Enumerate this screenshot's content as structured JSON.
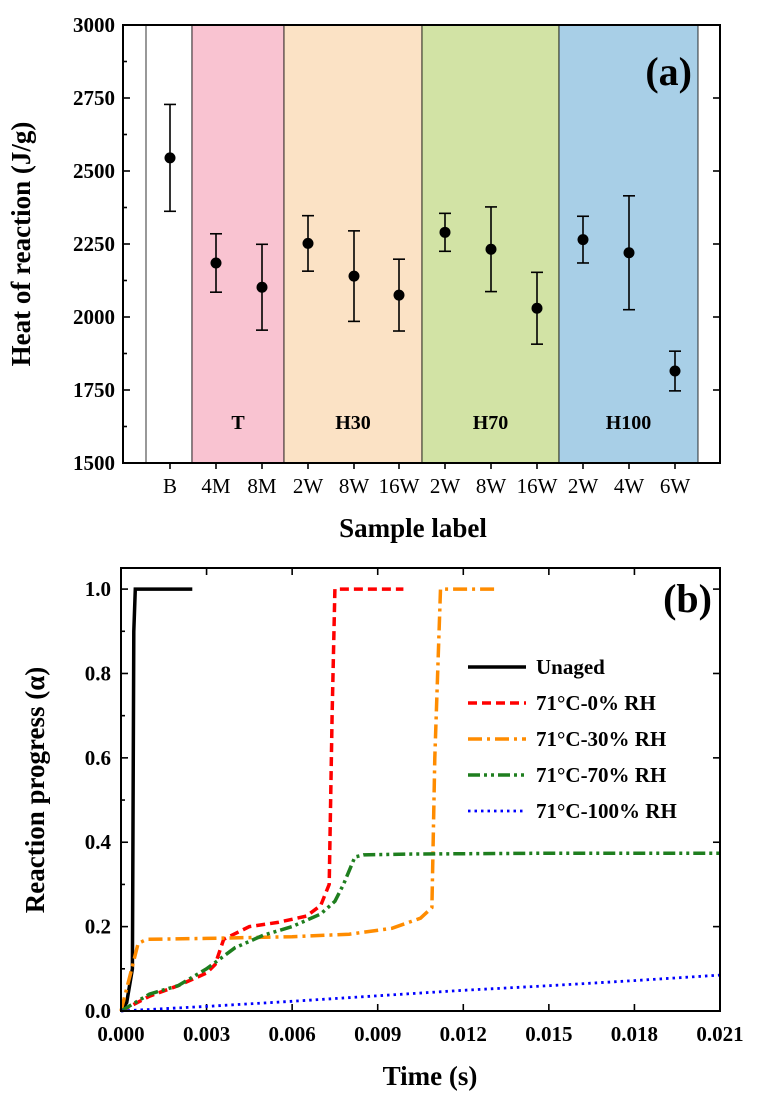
{
  "chart_data": [
    {
      "id": "a",
      "type": "scatter",
      "panel_label": "(a)",
      "xlabel": "Sample label",
      "ylabel": "Heat of reaction (J/g)",
      "ylim": [
        1500,
        3000
      ],
      "yticks": [
        1500,
        1750,
        2000,
        2250,
        2500,
        2750,
        3000
      ],
      "categories": [
        "B",
        "4M",
        "8M",
        "2W",
        "8W",
        "16W",
        "2W",
        "8W",
        "16W",
        "2W",
        "4W",
        "6W"
      ],
      "values": [
        2545,
        2185,
        2102,
        2252,
        2140,
        2075,
        2290,
        2232,
        2030,
        2265,
        2220,
        1815
      ],
      "errors": [
        183,
        100,
        147,
        95,
        155,
        123,
        65,
        145,
        123,
        80,
        195,
        68
      ],
      "groups": [
        {
          "label": "",
          "start": 0,
          "end": 0,
          "color": "#ffffff"
        },
        {
          "label": "T",
          "start": 1,
          "end": 2,
          "color": "#f9c3d1"
        },
        {
          "label": "H30",
          "start": 3,
          "end": 5,
          "color": "#fbe2c5"
        },
        {
          "label": "H70",
          "start": 6,
          "end": 8,
          "color": "#d2e3a5"
        },
        {
          "label": "H100",
          "start": 9,
          "end": 11,
          "color": "#a8cfe7"
        }
      ]
    },
    {
      "id": "b",
      "type": "line",
      "panel_label": "(b)",
      "xlabel": "Time (s)",
      "ylabel": "Reaction progress (α)",
      "xlim": [
        0,
        0.021
      ],
      "ylim": [
        0,
        1.05
      ],
      "xticks": [
        "0.000",
        "0.003",
        "0.006",
        "0.009",
        "0.012",
        "0.015",
        "0.018",
        "0.021"
      ],
      "yticks": [
        "0.0",
        "0.2",
        "0.4",
        "0.6",
        "0.8",
        "1.0"
      ],
      "legend_position": "right",
      "series": [
        {
          "name": "Unaged",
          "color": "#000000",
          "style": "solid",
          "x": [
            0,
            0.0002,
            0.0004,
            0.00045,
            0.0005,
            0.0025
          ],
          "y": [
            0,
            0.02,
            0.1,
            0.9,
            1.0,
            1.0
          ]
        },
        {
          "name": "71°C-0% RH",
          "color": "#ff0000",
          "style": "dash",
          "x": [
            0,
            0.001,
            0.002,
            0.003,
            0.0033,
            0.0036,
            0.0045,
            0.0055,
            0.0065,
            0.007,
            0.0073,
            0.0074,
            0.0075,
            0.0085,
            0.0099
          ],
          "y": [
            0,
            0.035,
            0.06,
            0.09,
            0.11,
            0.17,
            0.2,
            0.21,
            0.225,
            0.25,
            0.3,
            0.7,
            1.0,
            1.0,
            1.0
          ]
        },
        {
          "name": "71°C-30% RH",
          "color": "#ff8c00",
          "style": "dashdot",
          "x": [
            0,
            0.0003,
            0.0006,
            0.0009,
            0.003,
            0.006,
            0.008,
            0.0095,
            0.0105,
            0.0109,
            0.011,
            0.0112,
            0.0115,
            0.0132
          ],
          "y": [
            0,
            0.08,
            0.16,
            0.17,
            0.172,
            0.176,
            0.182,
            0.196,
            0.22,
            0.245,
            0.6,
            1.0,
            1.0,
            1.0
          ]
        },
        {
          "name": "71°C-70% RH",
          "color": "#1e7e1e",
          "style": "dashdotdot",
          "x": [
            0,
            0.001,
            0.002,
            0.003,
            0.004,
            0.005,
            0.006,
            0.007,
            0.0075,
            0.0078,
            0.0082,
            0.0085,
            0.01,
            0.015,
            0.021
          ],
          "y": [
            0,
            0.04,
            0.06,
            0.1,
            0.15,
            0.18,
            0.2,
            0.23,
            0.26,
            0.3,
            0.365,
            0.37,
            0.372,
            0.374,
            0.374
          ]
        },
        {
          "name": "71°C-100% RH",
          "color": "#0000ff",
          "style": "dot",
          "x": [
            0,
            0.003,
            0.006,
            0.009,
            0.012,
            0.015,
            0.018,
            0.021
          ],
          "y": [
            0,
            0.011,
            0.023,
            0.036,
            0.049,
            0.06,
            0.072,
            0.085
          ]
        }
      ]
    }
  ]
}
